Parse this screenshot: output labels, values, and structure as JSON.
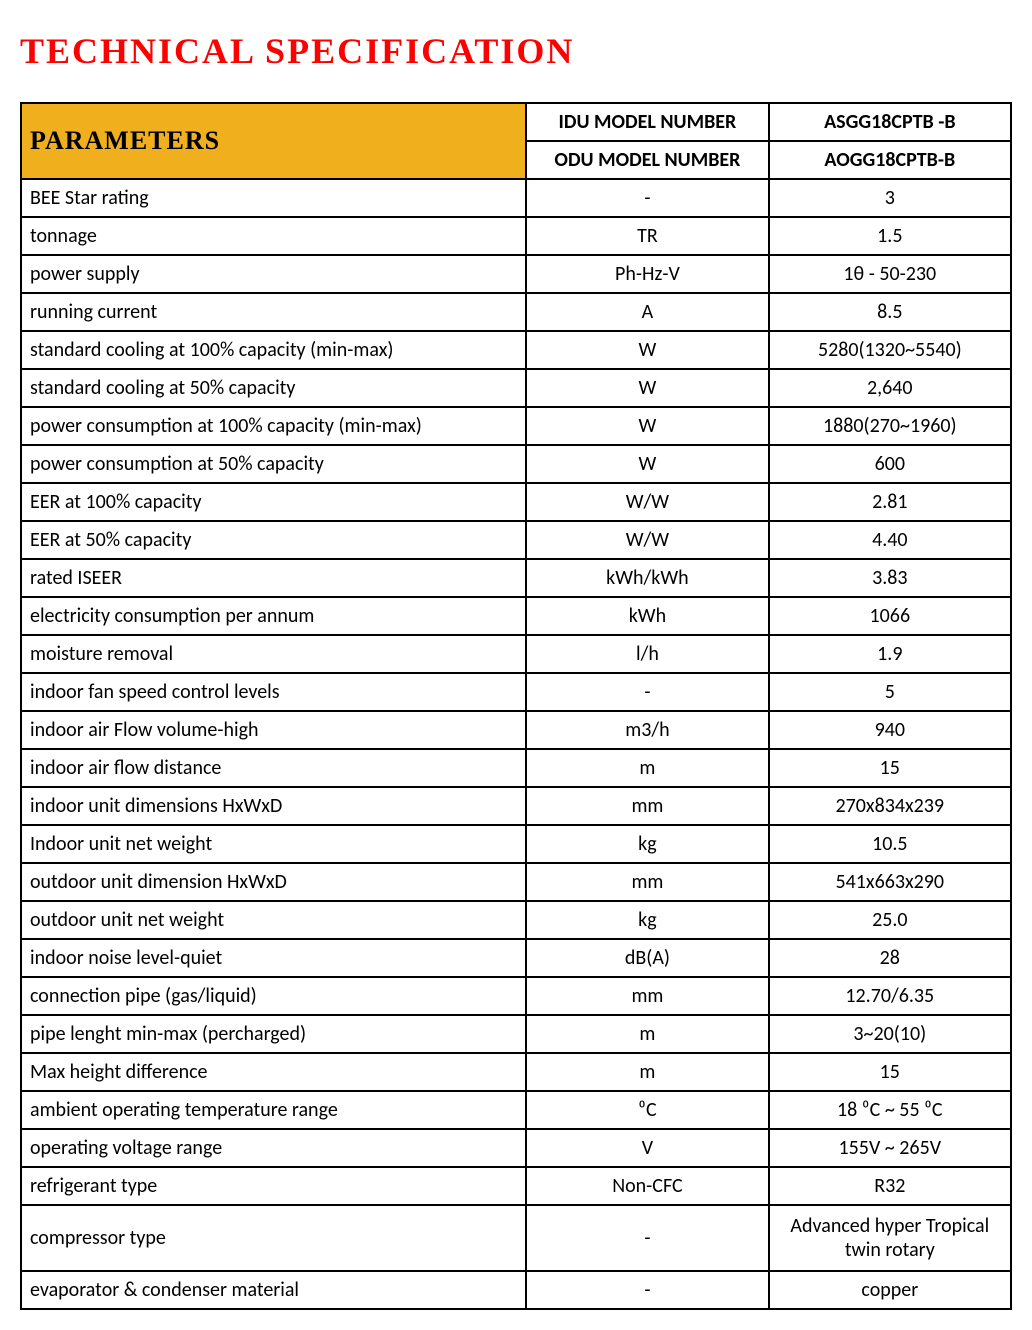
{
  "title": "TECHNICAL SPECIFICATION",
  "header": {
    "parameters_label": "PARAMETERS",
    "idu_label": "IDU MODEL NUMBER",
    "odu_label": "ODU MODEL NUMBER",
    "idu_value": "ASGG18CPTB -B",
    "odu_value": "AOGG18CPTB-B"
  },
  "colors": {
    "title": "#ff0000",
    "header_bg": "#f0b01e",
    "border": "#000000",
    "text": "#000000",
    "background": "#ffffff"
  },
  "rows": [
    {
      "param": "BEE Star rating",
      "unit": "-",
      "value": "3"
    },
    {
      "param": "tonnage",
      "unit": "TR",
      "value": "1.5"
    },
    {
      "param": "power supply",
      "unit": "Ph-Hz-V",
      "value": "1θ - 50-230"
    },
    {
      "param": "running current",
      "unit": "A",
      "value": "8.5"
    },
    {
      "param": "standard cooling at 100% capacity (min-max)",
      "unit": "W",
      "value": "5280(1320~5540)"
    },
    {
      "param": "standard cooling at 50% capacity",
      "unit": "W",
      "value": "2,640"
    },
    {
      "param": "power consumption at 100% capacity (min-max)",
      "unit": "W",
      "value": "1880(270~1960)"
    },
    {
      "param": "power consumption at 50% capacity",
      "unit": "W",
      "value": "600"
    },
    {
      "param": "EER at 100% capacity",
      "unit": "W/W",
      "value": "2.81"
    },
    {
      "param": "EER at 50% capacity",
      "unit": "W/W",
      "value": "4.40"
    },
    {
      "param": "rated ISEER",
      "unit": "kWh/kWh",
      "value": "3.83"
    },
    {
      "param": "electricity consumption per annum",
      "unit": "kWh",
      "value": "1066"
    },
    {
      "param": "moisture removal",
      "unit": "l/h",
      "value": "1.9"
    },
    {
      "param": "indoor fan speed control levels",
      "unit": "-",
      "value": "5"
    },
    {
      "param": "indoor air Flow volume-high",
      "unit": "m3/h",
      "value": "940"
    },
    {
      "param": "indoor air flow distance",
      "unit": "m",
      "value": "15"
    },
    {
      "param": "indoor unit dimensions HxWxD",
      "unit": "mm",
      "value": "270x834x239"
    },
    {
      "param": "Indoor unit net weight",
      "unit": "kg",
      "value": "10.5"
    },
    {
      "param": "outdoor unit dimension  HxWxD",
      "unit": "mm",
      "value": "541x663x290"
    },
    {
      "param": "outdoor unit net weight",
      "unit": "kg",
      "value": "25.0"
    },
    {
      "param": "indoor noise level-quiet",
      "unit": "dB(A)",
      "value": "28"
    },
    {
      "param": "connection pipe (gas/liquid)",
      "unit": "mm",
      "value": "12.70/6.35"
    },
    {
      "param": "pipe lenght min-max (percharged)",
      "unit": "m",
      "value": "3~20(10)"
    },
    {
      "param": "Max height difference",
      "unit": "m",
      "value": "15"
    },
    {
      "param": "ambient operating temperature range",
      "unit": "⁰C",
      "value": "18 ⁰C ~ 55 ⁰C"
    },
    {
      "param": "operating voltage range",
      "unit": "V",
      "value": "155V ~ 265V"
    },
    {
      "param": "refrigerant type",
      "unit": "Non-CFC",
      "value": "R32"
    },
    {
      "param": "compressor type",
      "unit": "-",
      "value": "Advanced hyper Tropical twin  rotary",
      "tall": true
    },
    {
      "param": "evaporator & condenser material",
      "unit": "-",
      "value": "copper"
    }
  ]
}
